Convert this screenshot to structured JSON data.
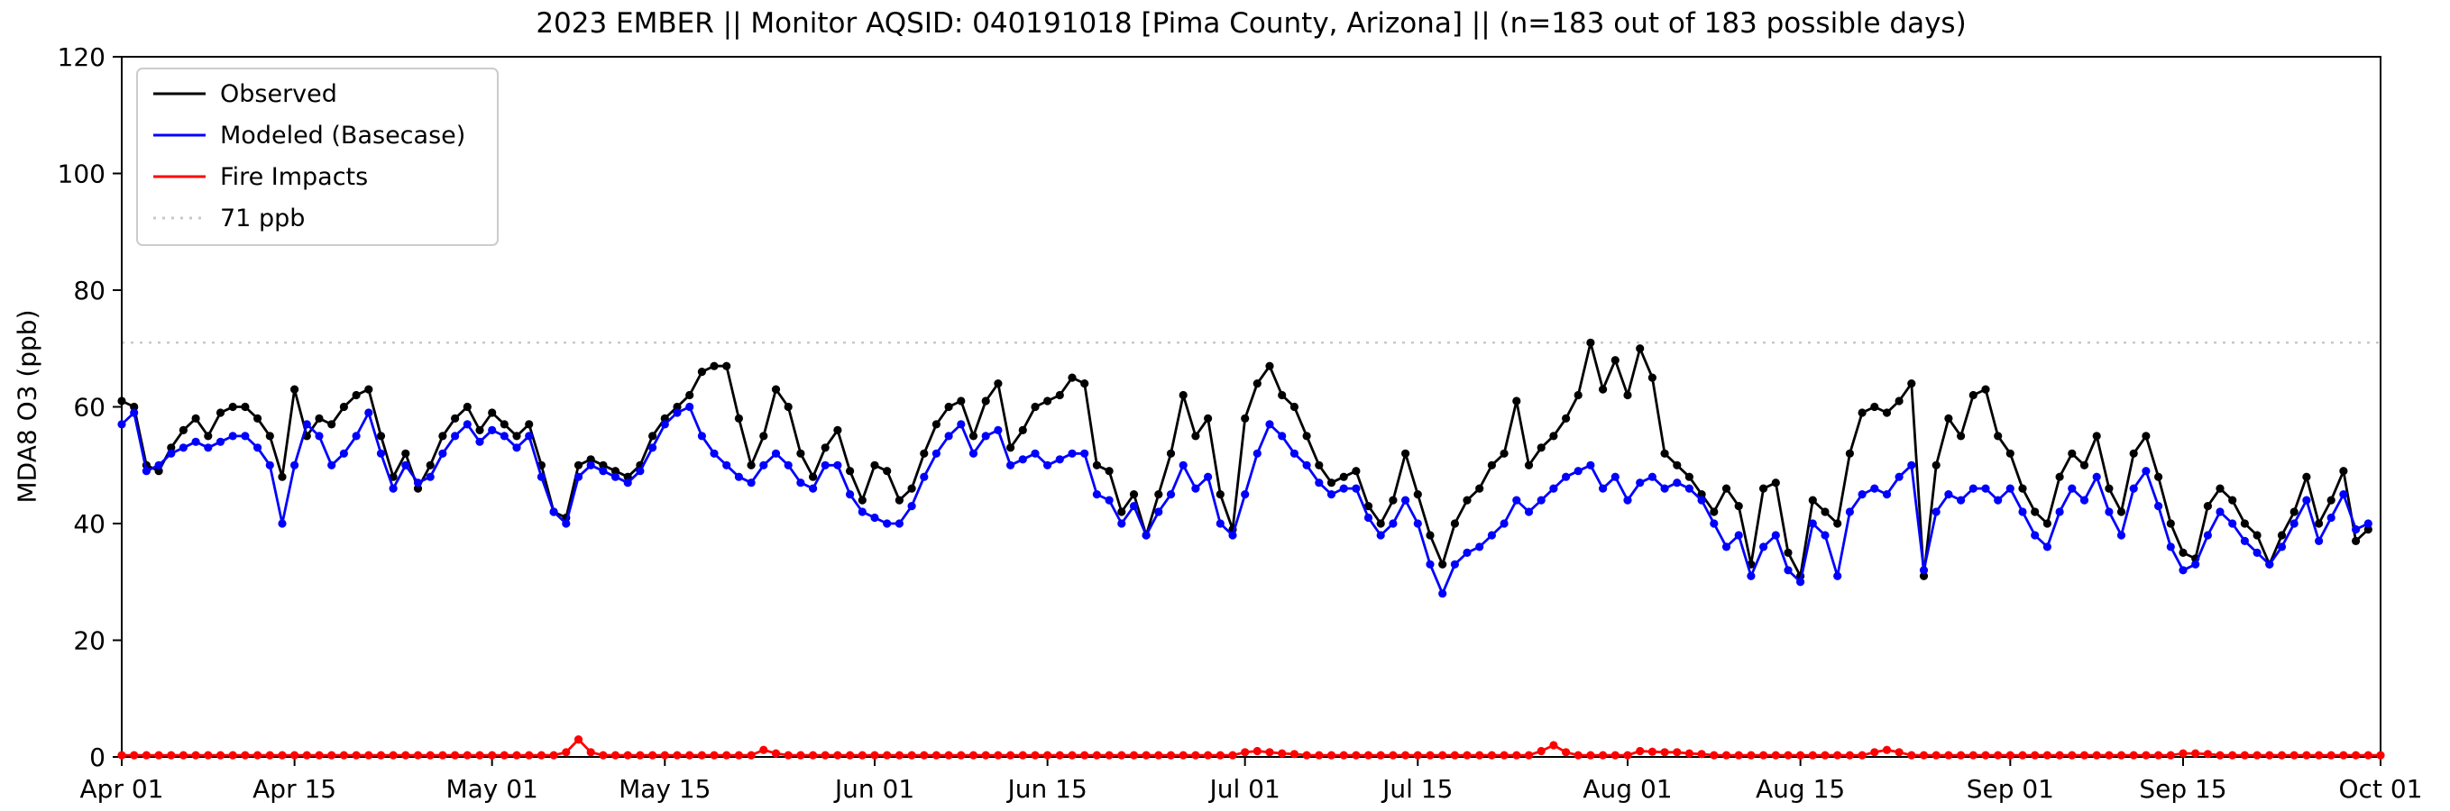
{
  "chart_data": {
    "type": "line",
    "title": "2023 EMBER || Monitor AQSID: 040191018 [Pima County, Arizona] || (n=183 out of 183 possible days)",
    "xlabel": "",
    "ylabel": "MDA8 O3 (ppb)",
    "ylim": [
      0,
      120
    ],
    "yticks": [
      0,
      20,
      40,
      60,
      80,
      100,
      120
    ],
    "x_total_days": 183,
    "xtick_days": [
      0,
      14,
      30,
      44,
      61,
      75,
      91,
      105,
      122,
      136,
      153,
      167,
      183
    ],
    "xtick_labels": [
      "Apr 01",
      "Apr 15",
      "May 01",
      "May 15",
      "Jun 01",
      "Jun 15",
      "Jul 01",
      "Jul 15",
      "Aug 01",
      "Aug 15",
      "Sep 01",
      "Sep 15",
      "Oct 01"
    ],
    "grid": false,
    "legend_position": "upper-left",
    "threshold": {
      "label": "71 ppb",
      "value": 71,
      "color": "#c8c8c8",
      "style": "dotted"
    },
    "series": [
      {
        "name": "Observed",
        "color": "#000000",
        "values": [
          61,
          60,
          50,
          49,
          53,
          56,
          58,
          55,
          59,
          60,
          60,
          58,
          55,
          48,
          63,
          55,
          58,
          57,
          60,
          62,
          63,
          55,
          48,
          52,
          46,
          50,
          55,
          58,
          60,
          56,
          59,
          57,
          55,
          57,
          50,
          42,
          41,
          50,
          51,
          50,
          49,
          48,
          50,
          55,
          58,
          60,
          62,
          66,
          67,
          67,
          58,
          50,
          55,
          63,
          60,
          52,
          48,
          53,
          56,
          49,
          44,
          50,
          49,
          44,
          46,
          52,
          57,
          60,
          61,
          55,
          61,
          64,
          53,
          56,
          60,
          61,
          62,
          65,
          64,
          50,
          49,
          42,
          45,
          38,
          45,
          52,
          62,
          55,
          58,
          45,
          39,
          58,
          64,
          67,
          62,
          60,
          55,
          50,
          47,
          48,
          49,
          43,
          40,
          44,
          52,
          45,
          38,
          33,
          40,
          44,
          46,
          50,
          52,
          61,
          50,
          53,
          55,
          58,
          62,
          71,
          63,
          68,
          62,
          70,
          65,
          52,
          50,
          48,
          45,
          42,
          46,
          43,
          33,
          46,
          47,
          35,
          31,
          44,
          42,
          40,
          52,
          59,
          60,
          59,
          61,
          64,
          31,
          50,
          58,
          55,
          62,
          63,
          55,
          52,
          46,
          42,
          40,
          48,
          52,
          50,
          55,
          46,
          42,
          52,
          55,
          48,
          40,
          35,
          34,
          43,
          46,
          44,
          40,
          38,
          33,
          38,
          42,
          48,
          40,
          44,
          49,
          37,
          39
        ]
      },
      {
        "name": "Modeled (Basecase)",
        "color": "#0000ff",
        "values": [
          57,
          59,
          49,
          50,
          52,
          53,
          54,
          53,
          54,
          55,
          55,
          53,
          50,
          40,
          50,
          57,
          55,
          50,
          52,
          55,
          59,
          52,
          46,
          50,
          47,
          48,
          52,
          55,
          57,
          54,
          56,
          55,
          53,
          55,
          48,
          42,
          40,
          48,
          50,
          49,
          48,
          47,
          49,
          53,
          57,
          59,
          60,
          55,
          52,
          50,
          48,
          47,
          50,
          52,
          50,
          47,
          46,
          50,
          50,
          45,
          42,
          41,
          40,
          40,
          43,
          48,
          52,
          55,
          57,
          52,
          55,
          56,
          50,
          51,
          52,
          50,
          51,
          52,
          52,
          45,
          44,
          40,
          43,
          38,
          42,
          45,
          50,
          46,
          48,
          40,
          38,
          45,
          52,
          57,
          55,
          52,
          50,
          47,
          45,
          46,
          46,
          41,
          38,
          40,
          44,
          40,
          33,
          28,
          33,
          35,
          36,
          38,
          40,
          44,
          42,
          44,
          46,
          48,
          49,
          50,
          46,
          48,
          44,
          47,
          48,
          46,
          47,
          46,
          44,
          40,
          36,
          38,
          31,
          36,
          38,
          32,
          30,
          40,
          38,
          31,
          42,
          45,
          46,
          45,
          48,
          50,
          32,
          42,
          45,
          44,
          46,
          46,
          44,
          46,
          42,
          38,
          36,
          42,
          46,
          44,
          48,
          42,
          38,
          46,
          49,
          43,
          36,
          32,
          33,
          38,
          42,
          40,
          37,
          35,
          33,
          36,
          40,
          44,
          37,
          41,
          45,
          39,
          40
        ]
      },
      {
        "name": "Fire Impacts",
        "color": "#ff0000",
        "values": [
          0.3,
          0.3,
          0.3,
          0.3,
          0.3,
          0.3,
          0.3,
          0.3,
          0.3,
          0.3,
          0.3,
          0.3,
          0.3,
          0.3,
          0.3,
          0.3,
          0.3,
          0.3,
          0.3,
          0.3,
          0.3,
          0.3,
          0.3,
          0.3,
          0.3,
          0.3,
          0.3,
          0.3,
          0.3,
          0.3,
          0.3,
          0.3,
          0.3,
          0.3,
          0.3,
          0.3,
          0.8,
          3,
          0.8,
          0.3,
          0.3,
          0.3,
          0.3,
          0.3,
          0.3,
          0.3,
          0.3,
          0.3,
          0.3,
          0.3,
          0.3,
          0.3,
          1.2,
          0.6,
          0.3,
          0.3,
          0.3,
          0.3,
          0.3,
          0.3,
          0.3,
          0.3,
          0.3,
          0.3,
          0.3,
          0.3,
          0.3,
          0.3,
          0.3,
          0.3,
          0.3,
          0.3,
          0.3,
          0.3,
          0.3,
          0.3,
          0.3,
          0.3,
          0.3,
          0.3,
          0.3,
          0.3,
          0.3,
          0.3,
          0.3,
          0.3,
          0.3,
          0.3,
          0.3,
          0.3,
          0.3,
          0.8,
          1,
          0.8,
          0.6,
          0.5,
          0.3,
          0.3,
          0.3,
          0.3,
          0.3,
          0.3,
          0.3,
          0.3,
          0.3,
          0.3,
          0.3,
          0.3,
          0.3,
          0.3,
          0.3,
          0.3,
          0.3,
          0.3,
          0.3,
          1,
          2,
          0.8,
          0.3,
          0.3,
          0.3,
          0.3,
          0.3,
          1,
          0.9,
          0.8,
          0.8,
          0.6,
          0.5,
          0.3,
          0.3,
          0.3,
          0.3,
          0.3,
          0.3,
          0.3,
          0.3,
          0.3,
          0.3,
          0.3,
          0.3,
          0.3,
          0.8,
          1.2,
          0.8,
          0.3,
          0.3,
          0.3,
          0.3,
          0.3,
          0.3,
          0.3,
          0.3,
          0.3,
          0.3,
          0.3,
          0.3,
          0.3,
          0.3,
          0.3,
          0.3,
          0.3,
          0.3,
          0.3,
          0.3,
          0.3,
          0.3,
          0.6,
          0.6,
          0.5,
          0.3,
          0.3,
          0.3,
          0.3,
          0.3,
          0.3,
          0.3,
          0.3,
          0.3,
          0.3,
          0.3,
          0.3,
          0.3,
          0.3
        ]
      }
    ]
  }
}
